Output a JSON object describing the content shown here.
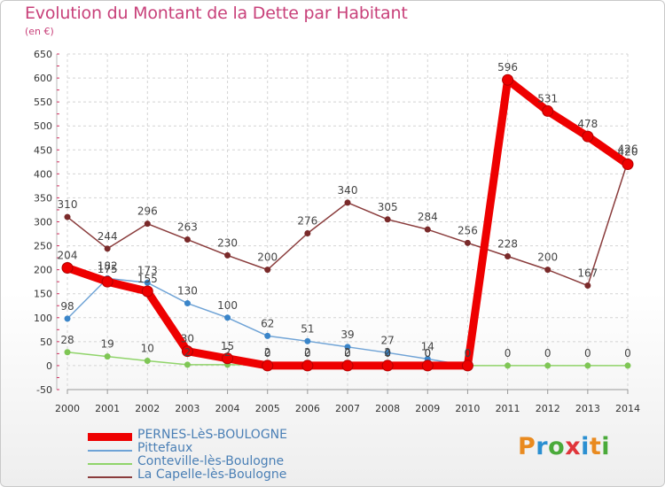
{
  "title": "Evolution du Montant de la Dette par Habitant",
  "unit_label": "(en €)",
  "logo": {
    "letters": [
      "P",
      "r",
      "o",
      "x",
      "i",
      "t",
      "i"
    ],
    "colors": [
      "#e98a1f",
      "#2a8fd1",
      "#4aaa3a",
      "#e0353a",
      "#2a8fd1",
      "#e98a1f",
      "#4aaa3a"
    ]
  },
  "chart_data": {
    "type": "line",
    "x": [
      "2000",
      "2001",
      "2002",
      "2003",
      "2004",
      "2005",
      "2006",
      "2007",
      "2008",
      "2009",
      "2010",
      "2011",
      "2012",
      "2013",
      "2014"
    ],
    "ylim": [
      -50,
      650
    ],
    "yticks": [
      "-50",
      "0",
      "50",
      "100",
      "150",
      "200",
      "250",
      "300",
      "350",
      "400",
      "450",
      "500",
      "550",
      "600",
      "650"
    ],
    "grid": true,
    "legend_position": "bottom-left",
    "series": [
      {
        "name": "PERNES-LèS-BOULOGNE",
        "color": "#ee0000",
        "marker": "#ee0000",
        "values": [
          204,
          175,
          155,
          30,
          15,
          0,
          0,
          0,
          0,
          0,
          0,
          596,
          531,
          478,
          420
        ],
        "labels": [
          "204",
          "175",
          "155",
          "30",
          "15",
          "0",
          "0",
          "0",
          "0",
          "0",
          "0",
          "596",
          "531",
          "478",
          "420"
        ]
      },
      {
        "name": "Pittefaux",
        "color": "#6fa3d6",
        "marker": "#3a85c9",
        "values": [
          98,
          182,
          173,
          130,
          100,
          62,
          51,
          39,
          27,
          14,
          0,
          null,
          null,
          null,
          null
        ],
        "labels": [
          "98",
          "182",
          "173",
          "130",
          "100",
          "62",
          "51",
          "39",
          "27",
          "14",
          "0",
          "",
          "",
          "",
          ""
        ]
      },
      {
        "name": "Conteville-lès-Boulogne",
        "color": "#90d46a",
        "marker": "#7fc655",
        "values": [
          28,
          19,
          10,
          2,
          2,
          2,
          2,
          2,
          2,
          0,
          0,
          0,
          0,
          0,
          0
        ],
        "labels": [
          "28",
          "19",
          "10",
          "2",
          "2",
          "2",
          "2",
          "2",
          "2",
          "0",
          "0",
          "0",
          "0",
          "0",
          "0"
        ]
      },
      {
        "name": "La Capelle-lès-Boulogne",
        "color": "#8a3c3c",
        "marker": "#7a2a2a",
        "values": [
          310,
          244,
          296,
          263,
          230,
          200,
          276,
          340,
          305,
          284,
          256,
          228,
          200,
          167,
          426
        ],
        "labels": [
          "310",
          "244",
          "296",
          "263",
          "230",
          "200",
          "276",
          "340",
          "305",
          "284",
          "256",
          "228",
          "200",
          "167",
          "426"
        ]
      }
    ]
  }
}
